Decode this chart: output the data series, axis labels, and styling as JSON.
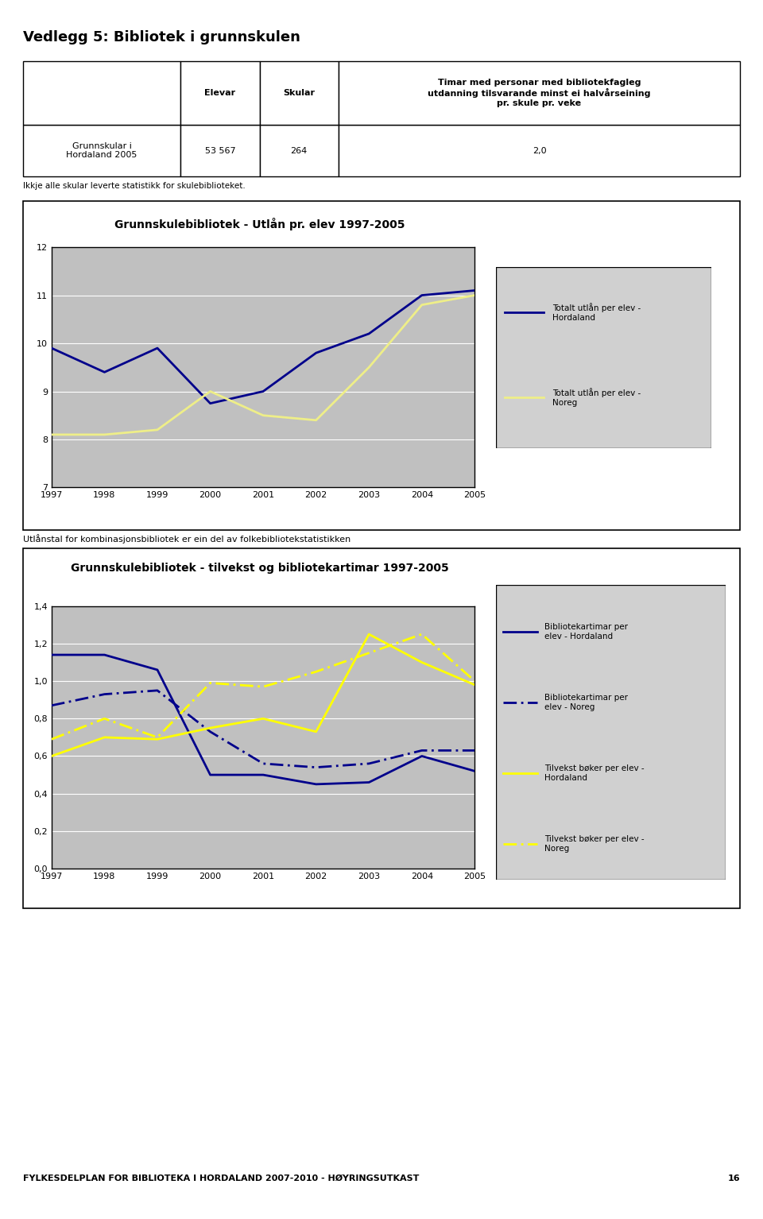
{
  "title": "Vedlegg 5: Bibliotek i grunnskulen",
  "table": {
    "row_label": "Grunnskular i\nHordaland 2005",
    "elevar": "53 567",
    "skular": "264",
    "timar": "2,0"
  },
  "note1": "Ikkje alle skular leverte statistikk for skulebiblioteket.",
  "chart1": {
    "title": "Grunnskulebibliotek - Utlån pr. elev 1997-2005",
    "years": [
      1997,
      1998,
      1999,
      2000,
      2001,
      2002,
      2003,
      2004,
      2005
    ],
    "hordaland": [
      9.9,
      9.4,
      9.9,
      8.75,
      9.0,
      9.8,
      10.2,
      11.0,
      11.1
    ],
    "noreg": [
      8.1,
      8.1,
      8.2,
      9.0,
      8.5,
      8.4,
      9.5,
      10.8,
      11.0
    ],
    "ylim": [
      7,
      12
    ],
    "yticks": [
      7,
      8,
      9,
      10,
      11,
      12
    ],
    "legend1": "Totalt utlån per elev -\nHordaland",
    "legend2": "Totalt utlån per elev -\nNoreg",
    "color_hordaland": "#00008B",
    "color_noreg": "#EEEE88",
    "plot_bg": "#C0C0C0"
  },
  "note2": "Utlånstal for kombinasjonsbibliotek er ein del av folkebibliotekstatistikken",
  "chart2": {
    "title": "Grunnskulebibliotek - tilvekst og bibliotekartimar 1997-2005",
    "years": [
      1997,
      1998,
      1999,
      2000,
      2001,
      2002,
      2003,
      2004,
      2005
    ],
    "bib_hordaland": [
      1.14,
      1.14,
      1.06,
      0.5,
      0.5,
      0.45,
      0.46,
      0.6,
      0.52
    ],
    "bib_noreg": [
      0.87,
      0.93,
      0.95,
      0.73,
      0.56,
      0.54,
      0.56,
      0.63,
      0.63
    ],
    "tilvekst_hordaland": [
      0.6,
      0.7,
      0.69,
      0.75,
      0.8,
      0.73,
      1.25,
      1.1,
      0.98
    ],
    "tilvekst_noreg": [
      0.69,
      0.8,
      0.7,
      0.99,
      0.97,
      1.05,
      1.15,
      1.25,
      1.0
    ],
    "ylim": [
      0,
      1.4
    ],
    "yticks": [
      0,
      0.2,
      0.4,
      0.6,
      0.8,
      1.0,
      1.2,
      1.4
    ],
    "legend1": "Bibliotekartimar per\nelev - Hordaland",
    "legend2": "Bibliotekartimar per\nelev - Noreg",
    "legend3": "Tilvekst bøker per elev -\nHordaland",
    "legend4": "Tilvekst bøker per elev -\nNoreg",
    "color_bib_h": "#00008B",
    "color_bib_n": "#00008B",
    "color_tilvekst_h": "#FFFF00",
    "color_tilvekst_n": "#FFFF00",
    "plot_bg": "#C0C0C0"
  },
  "footer": "FYLKESDELPLAN FOR BIBLIOTEKA I HORDALAND 2007-2010 - HØYRINGSUTKAST",
  "page_num": "16"
}
